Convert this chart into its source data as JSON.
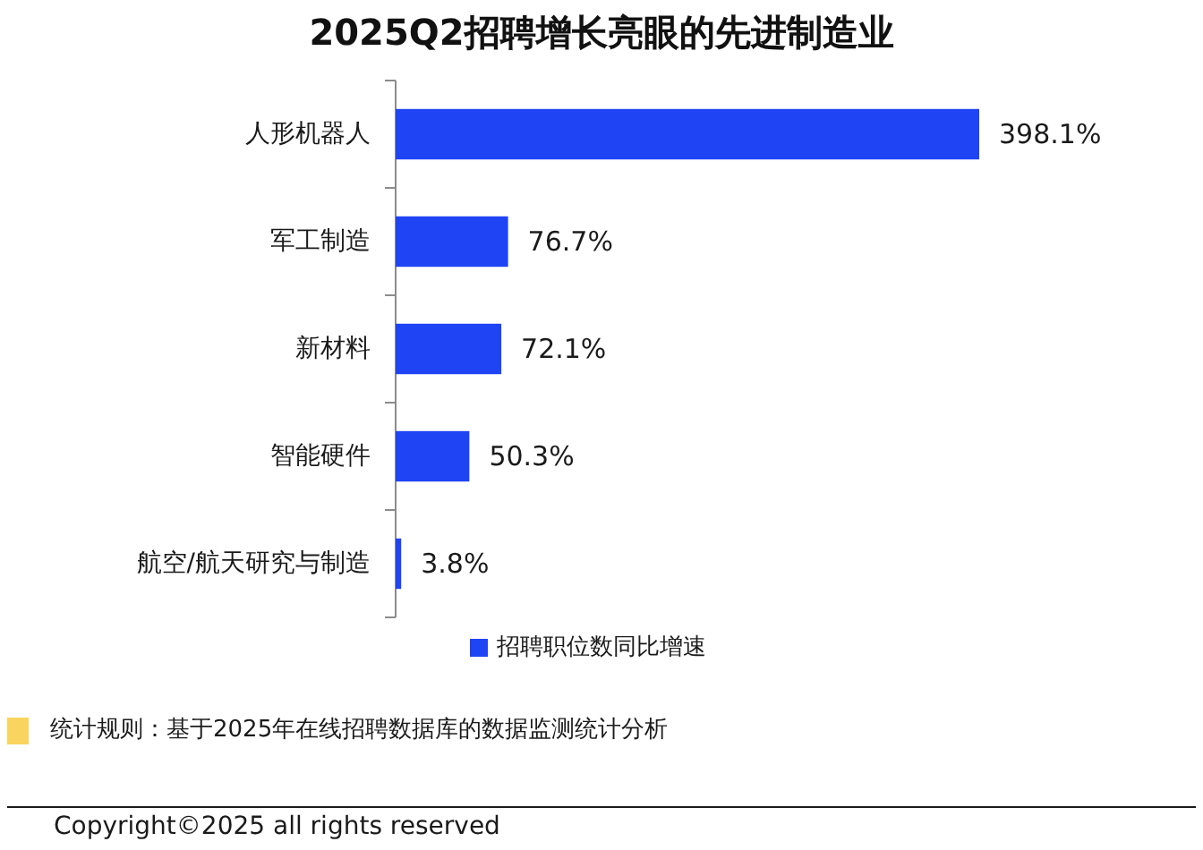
{
  "chart_data": {
    "type": "bar",
    "orientation": "horizontal",
    "title": "2025Q2招聘增长亮眼的先进制造业",
    "categories": [
      "人形机器人",
      "军工制造",
      "新材料",
      "智能硬件",
      "航空/航天研究与制造"
    ],
    "series": [
      {
        "name": "招聘职位数同比增速",
        "color": "#1f44f4",
        "values": [
          398.1,
          76.7,
          72.1,
          50.3,
          3.8
        ],
        "value_labels": [
          "398.1%",
          "76.7%",
          "72.1%",
          "50.3%",
          "3.8%"
        ]
      }
    ],
    "legend": "bottom",
    "annotations": [
      "统计规则：基于2025年在线招聘数据库的数据监测统计分析",
      "Copyright©2025 all rights reserved"
    ]
  }
}
